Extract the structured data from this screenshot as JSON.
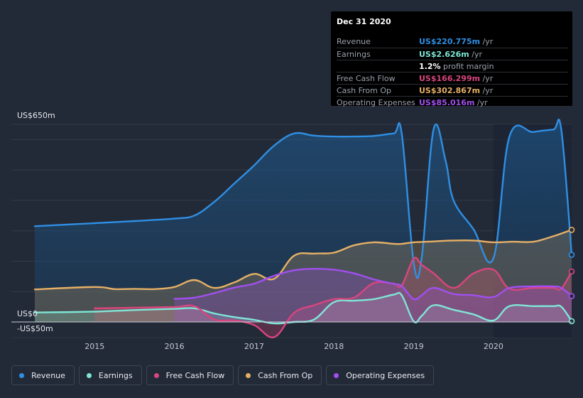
{
  "colors": {
    "revenue": "#2f8fe4",
    "earnings": "#7fe6d6",
    "free_cash_flow": "#d9457e",
    "cash_from_op": "#e6b066",
    "operating_expenses": "#a24ff0"
  },
  "tooltip": {
    "date": "Dec 31 2020",
    "rows": [
      {
        "name": "Revenue",
        "value": "US$220.775m",
        "unit": "/yr",
        "color": "#2f8fe4"
      },
      {
        "name": "Earnings",
        "value": "US$2.626m",
        "unit": "/yr",
        "color": "#7fe6d6"
      },
      {
        "name": "",
        "value": "1.2%",
        "unit": "profit margin",
        "color": "#ffffff"
      },
      {
        "name": "Free Cash Flow",
        "value": "US$166.299m",
        "unit": "/yr",
        "color": "#d9457e"
      },
      {
        "name": "Cash From Op",
        "value": "US$302.867m",
        "unit": "/yr",
        "color": "#e6b066"
      },
      {
        "name": "Operating Expenses",
        "value": "US$85.016m",
        "unit": "/yr",
        "color": "#a24ff0"
      }
    ]
  },
  "legend": [
    {
      "label": "Revenue",
      "color": "#2f8fe4"
    },
    {
      "label": "Earnings",
      "color": "#7fe6d6"
    },
    {
      "label": "Free Cash Flow",
      "color": "#d9457e"
    },
    {
      "label": "Cash From Op",
      "color": "#e6b066"
    },
    {
      "label": "Operating Expenses",
      "color": "#a24ff0"
    }
  ],
  "chart_data": {
    "type": "area",
    "y_top_label": "US$650m",
    "y_zero_label": "US$0",
    "y_bottom_label": "-US$50m",
    "ylim": [
      -50,
      650
    ],
    "xlim": [
      2014.2,
      2020.98
    ],
    "x_ticks": [
      2015,
      2016,
      2017,
      2018,
      2019,
      2020
    ],
    "x_tick_labels": [
      "2015",
      "2016",
      "2017",
      "2018",
      "2019",
      "2020"
    ],
    "highlight_from": 2020.0,
    "series": [
      {
        "name": "Revenue",
        "key": "revenue",
        "points": [
          [
            2014.25,
            315
          ],
          [
            2015,
            325
          ],
          [
            2015.5,
            332
          ],
          [
            2016,
            340
          ],
          [
            2016.25,
            350
          ],
          [
            2016.5,
            395
          ],
          [
            2016.75,
            455
          ],
          [
            2017,
            515
          ],
          [
            2017.25,
            580
          ],
          [
            2017.5,
            620
          ],
          [
            2017.75,
            613
          ],
          [
            2018,
            610
          ],
          [
            2018.25,
            610
          ],
          [
            2018.5,
            612
          ],
          [
            2018.75,
            620
          ],
          [
            2018.85,
            620
          ],
          [
            2019,
            195
          ],
          [
            2019.1,
            210
          ],
          [
            2019.25,
            635
          ],
          [
            2019.4,
            530
          ],
          [
            2019.5,
            400
          ],
          [
            2019.75,
            305
          ],
          [
            2020,
            210
          ],
          [
            2020.2,
            610
          ],
          [
            2020.5,
            625
          ],
          [
            2020.75,
            633
          ],
          [
            2020.85,
            633
          ],
          [
            2020.98,
            221
          ]
        ]
      },
      {
        "name": "Earnings",
        "key": "earnings",
        "points": [
          [
            2014.25,
            31
          ],
          [
            2015,
            34
          ],
          [
            2015.5,
            39
          ],
          [
            2016,
            43
          ],
          [
            2016.25,
            45
          ],
          [
            2016.5,
            28
          ],
          [
            2016.75,
            16
          ],
          [
            2017,
            7
          ],
          [
            2017.25,
            -5
          ],
          [
            2017.5,
            0
          ],
          [
            2017.75,
            8
          ],
          [
            2018,
            65
          ],
          [
            2018.25,
            70
          ],
          [
            2018.5,
            75
          ],
          [
            2018.75,
            90
          ],
          [
            2018.85,
            88
          ],
          [
            2019,
            2
          ],
          [
            2019.1,
            20
          ],
          [
            2019.25,
            55
          ],
          [
            2019.5,
            40
          ],
          [
            2019.75,
            25
          ],
          [
            2020,
            5
          ],
          [
            2020.2,
            52
          ],
          [
            2020.5,
            52
          ],
          [
            2020.75,
            52
          ],
          [
            2020.85,
            50
          ],
          [
            2020.98,
            2.6
          ]
        ]
      },
      {
        "name": "Free Cash Flow",
        "key": "free_cash_flow",
        "points": [
          [
            2015,
            45
          ],
          [
            2015.5,
            47
          ],
          [
            2016,
            49
          ],
          [
            2016.25,
            52
          ],
          [
            2016.5,
            8
          ],
          [
            2016.75,
            5
          ],
          [
            2017,
            -10
          ],
          [
            2017.25,
            -50
          ],
          [
            2017.5,
            30
          ],
          [
            2017.75,
            55
          ],
          [
            2018,
            75
          ],
          [
            2018.25,
            80
          ],
          [
            2018.5,
            128
          ],
          [
            2018.75,
            126
          ],
          [
            2018.85,
            120
          ],
          [
            2019,
            208
          ],
          [
            2019.1,
            188
          ],
          [
            2019.25,
            160
          ],
          [
            2019.5,
            112
          ],
          [
            2019.75,
            160
          ],
          [
            2020,
            172
          ],
          [
            2020.2,
            110
          ],
          [
            2020.5,
            112
          ],
          [
            2020.75,
            112
          ],
          [
            2020.85,
            110
          ],
          [
            2020.98,
            166
          ]
        ]
      },
      {
        "name": "Cash From Op",
        "key": "cash_from_op",
        "points": [
          [
            2014.25,
            107
          ],
          [
            2015,
            115
          ],
          [
            2015.25,
            108
          ],
          [
            2015.5,
            109
          ],
          [
            2015.75,
            108
          ],
          [
            2016,
            115
          ],
          [
            2016.25,
            138
          ],
          [
            2016.5,
            112
          ],
          [
            2016.75,
            130
          ],
          [
            2017,
            158
          ],
          [
            2017.25,
            142
          ],
          [
            2017.5,
            218
          ],
          [
            2017.75,
            225
          ],
          [
            2018,
            228
          ],
          [
            2018.25,
            252
          ],
          [
            2018.5,
            262
          ],
          [
            2018.75,
            257
          ],
          [
            2018.85,
            257
          ],
          [
            2019,
            262
          ],
          [
            2019.25,
            265
          ],
          [
            2019.5,
            268
          ],
          [
            2019.75,
            268
          ],
          [
            2020,
            262
          ],
          [
            2020.25,
            264
          ],
          [
            2020.5,
            264
          ],
          [
            2020.75,
            282
          ],
          [
            2020.98,
            303
          ]
        ]
      },
      {
        "name": "Operating Expenses",
        "key": "operating_expenses",
        "points": [
          [
            2016,
            76
          ],
          [
            2016.25,
            80
          ],
          [
            2016.5,
            95
          ],
          [
            2016.75,
            113
          ],
          [
            2017,
            126
          ],
          [
            2017.25,
            152
          ],
          [
            2017.5,
            170
          ],
          [
            2017.75,
            175
          ],
          [
            2018,
            172
          ],
          [
            2018.25,
            160
          ],
          [
            2018.5,
            140
          ],
          [
            2018.75,
            125
          ],
          [
            2018.85,
            118
          ],
          [
            2019,
            75
          ],
          [
            2019.1,
            88
          ],
          [
            2019.25,
            112
          ],
          [
            2019.5,
            92
          ],
          [
            2019.75,
            88
          ],
          [
            2020,
            82
          ],
          [
            2020.2,
            112
          ],
          [
            2020.5,
            117
          ],
          [
            2020.75,
            117
          ],
          [
            2020.85,
            112
          ],
          [
            2020.98,
            85
          ]
        ]
      }
    ]
  }
}
